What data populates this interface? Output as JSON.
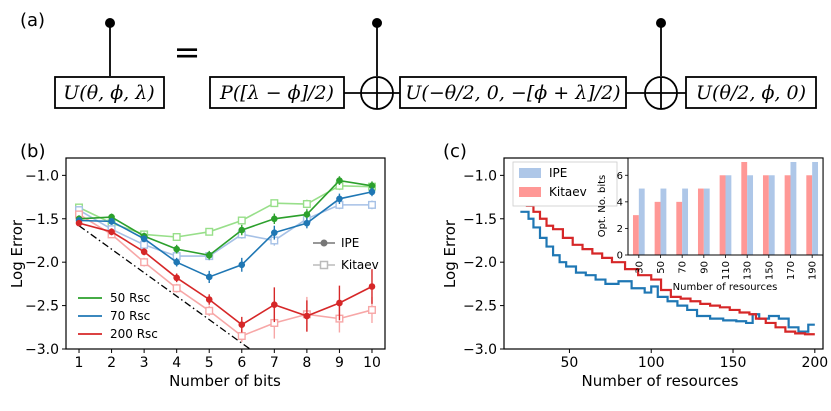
{
  "panel_labels": {
    "a": "(a)",
    "b": "(b)",
    "c": "(c)"
  },
  "circuit": {
    "gate_u": "U(θ, ϕ, λ)",
    "equals": "=",
    "gate_p": "P([λ − ϕ]/2)",
    "gate_u2": "U(−θ/2, 0, −[ϕ + λ]/2)",
    "gate_u3": "U(θ/2, ϕ, 0)",
    "plus": "⊕"
  },
  "colors": {
    "green": "#2ca02c",
    "green_light": "#98df8a",
    "blue": "#1f77b4",
    "blue_light": "#a6c1e6",
    "red": "#d62728",
    "red_light": "#f7a7a7",
    "ipe_inset": "#aec7e8",
    "kitaev_inset": "#ff9896"
  },
  "chart_data": [
    {
      "type": "line",
      "panel": "(b)",
      "xlabel": "Number of bits",
      "ylabel": "Log Error",
      "xlim": [
        0.6,
        10.4
      ],
      "ylim": [
        -3.0,
        -0.8
      ],
      "xticks": [
        1,
        2,
        3,
        4,
        5,
        6,
        7,
        8,
        9,
        10
      ],
      "yticks": [
        -3.0,
        -2.5,
        -2.0,
        -1.5,
        -1.0
      ],
      "ytick_labels": [
        "−3.0",
        "−2.5",
        "−2.0",
        "−1.5",
        "−1.0"
      ],
      "x": [
        1,
        2,
        3,
        4,
        5,
        6,
        7,
        8,
        9,
        10
      ],
      "reference_line": {
        "style": "dash-dot",
        "x": [
          1,
          6.25
        ],
        "y": [
          -1.58,
          -3.0
        ]
      },
      "series": [
        {
          "name": "50 Rsc IPE",
          "color": "green",
          "marker": "circle",
          "values": [
            -1.5,
            -1.48,
            -1.7,
            -1.85,
            -1.92,
            -1.63,
            -1.5,
            -1.45,
            -1.06,
            -1.12
          ],
          "err": [
            0.04,
            0.04,
            0.04,
            0.05,
            0.05,
            0.06,
            0.06,
            0.06,
            0.05,
            0.05
          ]
        },
        {
          "name": "50 Rsc Kitaev",
          "color": "green_light",
          "marker": "square",
          "values": [
            -1.37,
            -1.55,
            -1.68,
            -1.71,
            -1.65,
            -1.52,
            -1.32,
            -1.33,
            -1.12,
            -1.13
          ],
          "err": [
            0.03,
            0.03,
            0.03,
            0.03,
            0.04,
            0.04,
            0.04,
            0.05,
            0.05,
            0.05
          ]
        },
        {
          "name": "70 Rsc IPE",
          "color": "blue",
          "marker": "circle",
          "values": [
            -1.52,
            -1.53,
            -1.73,
            -2.0,
            -2.17,
            -2.03,
            -1.66,
            -1.55,
            -1.27,
            -1.19
          ],
          "err": [
            0.04,
            0.04,
            0.04,
            0.05,
            0.07,
            0.08,
            0.08,
            0.06,
            0.06,
            0.05
          ]
        },
        {
          "name": "70 Rsc Kitaev",
          "color": "blue_light",
          "marker": "square",
          "values": [
            -1.4,
            -1.62,
            -1.8,
            -1.93,
            -1.93,
            -1.68,
            -1.75,
            -1.5,
            -1.34,
            -1.34
          ],
          "err": [
            0.03,
            0.03,
            0.04,
            0.04,
            0.05,
            0.05,
            0.06,
            0.06,
            0.05,
            0.05
          ]
        },
        {
          "name": "200 Rsc IPE",
          "color": "red",
          "marker": "circle",
          "values": [
            -1.55,
            -1.65,
            -1.88,
            -2.18,
            -2.43,
            -2.72,
            -2.49,
            -2.62,
            -2.47,
            -2.28
          ],
          "err": [
            0.03,
            0.04,
            0.04,
            0.05,
            0.06,
            0.09,
            0.2,
            0.18,
            0.2,
            0.2
          ]
        },
        {
          "name": "200 Rsc Kitaev",
          "color": "red_light",
          "marker": "square",
          "values": [
            -1.45,
            -1.68,
            -2.0,
            -2.3,
            -2.56,
            -2.85,
            -2.7,
            -2.6,
            -2.65,
            -2.55
          ],
          "err": [
            0.03,
            0.04,
            0.05,
            0.05,
            0.06,
            0.07,
            0.18,
            0.2,
            0.16,
            0.15
          ]
        }
      ],
      "legend_markers": {
        "title": "",
        "position": "center-right",
        "entries": [
          {
            "label": "IPE",
            "marker": "circle"
          },
          {
            "label": "Kitaev",
            "marker": "square"
          }
        ]
      },
      "legend_colors": {
        "position": "lower-left",
        "entries": [
          {
            "label": "50 Rsc",
            "color": "green"
          },
          {
            "label": "70 Rsc",
            "color": "blue"
          },
          {
            "label": "200 Rsc",
            "color": "red"
          }
        ]
      }
    },
    {
      "type": "line",
      "panel": "(c)",
      "xlabel": "Number of resources",
      "ylabel": "Log Error",
      "xlim": [
        10,
        205
      ],
      "ylim": [
        -3.0,
        -0.8
      ],
      "xticks": [
        50,
        100,
        150,
        200
      ],
      "yticks": [
        -3.0,
        -2.5,
        -2.0,
        -1.5,
        -1.0
      ],
      "ytick_labels": [
        "−3.0",
        "−2.5",
        "−2.0",
        "−1.5",
        "−1.0"
      ],
      "legend": {
        "position": "top-left",
        "entries": [
          {
            "label": "IPE",
            "color": "ipe_inset"
          },
          {
            "label": "Kitaev",
            "color": "kitaev_inset"
          }
        ]
      },
      "series": [
        {
          "name": "IPE",
          "color": "blue",
          "step": true,
          "x": [
            20,
            25,
            28,
            32,
            36,
            40,
            44,
            48,
            54,
            60,
            66,
            72,
            80,
            88,
            96,
            100,
            104,
            110,
            116,
            122,
            128,
            136,
            144,
            152,
            158,
            162,
            166,
            172,
            178,
            184,
            190,
            196,
            200
          ],
          "y": [
            -1.42,
            -1.5,
            -1.6,
            -1.72,
            -1.82,
            -1.92,
            -2.0,
            -2.05,
            -2.12,
            -2.15,
            -2.2,
            -2.25,
            -2.22,
            -2.3,
            -2.35,
            -2.28,
            -2.4,
            -2.45,
            -2.5,
            -2.55,
            -2.62,
            -2.65,
            -2.67,
            -2.68,
            -2.7,
            -2.6,
            -2.65,
            -2.62,
            -2.65,
            -2.75,
            -2.8,
            -2.72,
            -2.72
          ]
        },
        {
          "name": "Kitaev",
          "color": "red",
          "step": true,
          "x": [
            20,
            24,
            28,
            32,
            36,
            40,
            46,
            52,
            58,
            64,
            70,
            76,
            84,
            92,
            100,
            106,
            112,
            118,
            124,
            130,
            136,
            142,
            148,
            154,
            160,
            164,
            170,
            176,
            182,
            188,
            194,
            200
          ],
          "y": [
            -1.3,
            -1.35,
            -1.42,
            -1.5,
            -1.58,
            -1.62,
            -1.72,
            -1.8,
            -1.85,
            -1.9,
            -1.95,
            -2.0,
            -2.08,
            -2.15,
            -2.2,
            -2.32,
            -2.4,
            -2.42,
            -2.45,
            -2.48,
            -2.5,
            -2.52,
            -2.55,
            -2.58,
            -2.6,
            -2.65,
            -2.7,
            -2.75,
            -2.8,
            -2.82,
            -2.83,
            -2.83
          ]
        }
      ]
    },
    {
      "type": "bar",
      "panel": "(c) inset",
      "xlabel": "Number of resources",
      "ylabel": "Opt. No. bits",
      "categories": [
        "30",
        "50",
        "70",
        "90",
        "110",
        "130",
        "150",
        "170",
        "190"
      ],
      "ylim": [
        0,
        7.3
      ],
      "yticks": [
        0,
        2,
        4,
        6
      ],
      "series": [
        {
          "name": "Kitaev",
          "color": "kitaev_inset",
          "values": [
            3,
            4,
            4,
            5,
            6,
            7,
            6,
            6,
            6
          ]
        },
        {
          "name": "IPE",
          "color": "ipe_inset",
          "values": [
            5,
            5,
            5,
            5,
            6,
            6,
            6,
            7,
            7
          ]
        }
      ]
    }
  ]
}
